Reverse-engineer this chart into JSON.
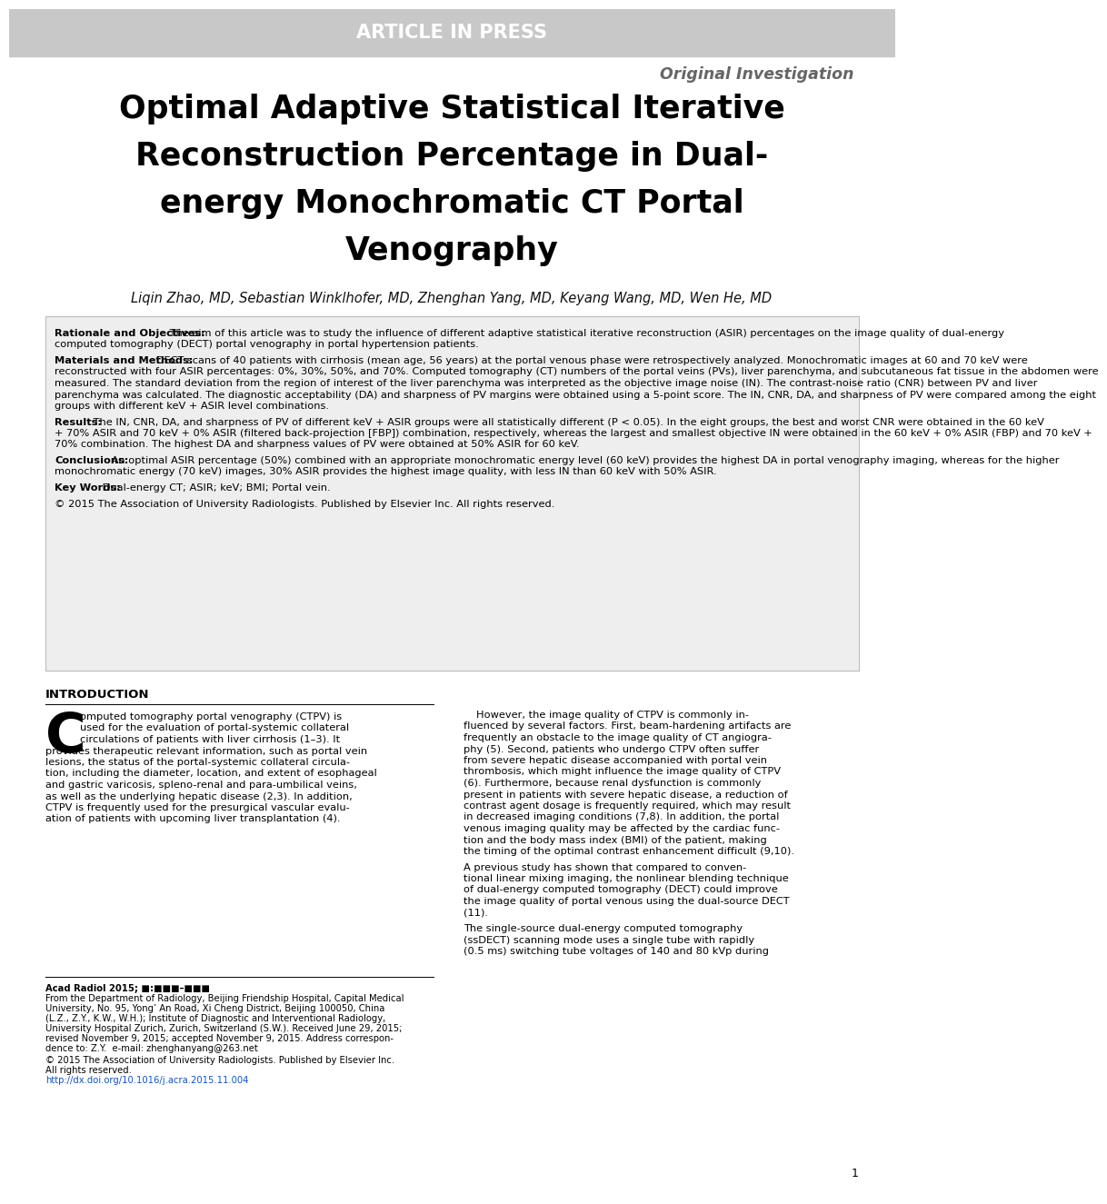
{
  "header_bg_color": "#c8c8c8",
  "header_text": "ARTICLE IN PRESS",
  "subheader_text": "Original Investigation",
  "title_lines": [
    "Optimal Adaptive Statistical Iterative",
    "Reconstruction Percentage in Dual-",
    "energy Monochromatic CT Portal",
    "Venography"
  ],
  "authors": "Liqin Zhao, MD, Sebastian Winklhofer, MD, Zhenghan Yang, MD, Keyang Wang, MD, Wen He, MD",
  "abstract_box_bg": "#eeeeee",
  "abstract_border_color": "#bbbbbb",
  "abstract_sections": [
    {
      "label": "Rationale and Objectives:",
      "text": " The aim of this article was to study the influence of different adaptive statistical iterative reconstruction (ASIR) percentages on the image quality of dual-energy computed tomography (DECT) portal venography in portal hypertension patients."
    },
    {
      "label": "Materials and Methods:",
      "text": " DECT scans of 40 patients with cirrhosis (mean age, 56 years) at the portal venous phase were retrospectively analyzed. Monochromatic images at 60 and 70 keV were reconstructed with four ASIR percentages: 0%, 30%, 50%, and 70%. Computed tomography (CT) numbers of the portal veins (PVs), liver parenchyma, and subcutaneous fat tissue in the abdomen were measured. The standard deviation from the region of interest of the liver parenchyma was interpreted as the objective image noise (IN). The contrast-noise ratio (CNR) between PV and liver parenchyma was calculated. The diagnostic acceptability (DA) and sharpness of PV margins were obtained using a 5-point score. The IN, CNR, DA, and sharpness of PV were compared among the eight groups with different keV + ASIR level combinations."
    },
    {
      "label": "Results:",
      "text": " The IN, CNR, DA, and sharpness of PV of different keV + ASIR groups were all statistically different (P < 0.05). In the eight groups, the best and worst CNR were obtained in the 60 keV + 70% ASIR and 70 keV + 0% ASIR (filtered back-projection [FBP]) combination, respectively, whereas the largest and smallest objective IN were obtained in the 60 keV + 0% ASIR (FBP) and 70 keV + 70% combination. The highest DA and sharpness values of PV were obtained at 50% ASIR for 60 keV."
    },
    {
      "label": "Conclusions:",
      "text": " An optimal ASIR percentage (50%) combined with an appropriate monochromatic energy level (60 keV) provides the highest DA in portal venography imaging, whereas for the higher monochromatic energy (70 keV) images, 30% ASIR provides the highest image quality, with less IN than 60 keV with 50% ASIR."
    },
    {
      "label": "Key Words:",
      "text": " Dual-energy CT; ASIR; keV; BMI; Portal vein."
    },
    {
      "label": "© 2015",
      "text": " The Association of University Radiologists. Published by Elsevier Inc. All rights reserved.",
      "no_bold": true
    }
  ],
  "intro_title": "INTRODUCTION",
  "intro_drop_cap": "C",
  "intro_left_col_after_drop": "omputed tomography portal venography (CTPV) is\nused for the evaluation of portal-systemic collateral\ncirculations of patients with liver cirrhosis (1–3). It\nprovides therapeutic relevant information, such as portal vein\nlesions, the status of the portal-systemic collateral circula-\ntion, including the diameter, location, and extent of esophageal\nand gastric varicosis, spleno-renal and para-umbilical veins,\nas well as the underlying hepatic disease (2,3). In addition,\nCTPV is frequently used for the presurgical vascular evalu-\nation of patients with upcoming liver transplantation (4).",
  "intro_right_col_paras": [
    "However, the image quality of CTPV is commonly in-\nfluenced by several factors. First, beam-hardening artifacts are\nfrequently an obstacle to the image quality of CT angiogra-\nphy (5). Second, patients who undergo CTPV often suffer\nfrom severe hepatic disease accompanied with portal vein\nthrombosis, which might influence the image quality of CTPV\n(6). Furthermore, because renal dysfunction is commonly\npresent in patients with severe hepatic disease, a reduction of\ncontrast agent dosage is frequently required, which may result\nin decreased imaging conditions (7,8). In addition, the portal\nvenous imaging quality may be affected by the cardiac func-\ntion and the body mass index (BMI) of the patient, making\nthe timing of the optimal contrast enhancement difficult (9,10).",
    "A previous study has shown that compared to conven-\ntional linear mixing imaging, the nonlinear blending technique\nof dual-energy computed tomography (DECT) could improve\nthe image quality of portal venous using the dual-source DECT\n(11).",
    "The single-source dual-energy computed tomography\n(ssDECT) scanning mode uses a single tube with rapidly\n(0.5 ms) switching tube voltages of 140 and 80 kVp during"
  ],
  "footer_acad": "Acad Radiol 2015; ■:■■■–■■■",
  "footer_body": "From the Department of Radiology, Beijing Friendship Hospital, Capital Medical\nUniversity, No. 95, Yong’ An Road, Xi Cheng District, Beijing 100050, China\n(L.Z., Z.Y., K.W., W.H.); Institute of Diagnostic and Interventional Radiology,\nUniversity Hospital Zurich, Zurich, Switzerland (S.W.). Received June 29, 2015;\nrevised November 9, 2015; accepted November 9, 2015. Address correspon-\ndence to: Z.Y.  e-mail: zhenghanyang@263.net",
  "footer_copy": "© 2015 The Association of University Radiologists. Published by Elsevier Inc.\nAll rights reserved.",
  "footer_doi": "http://dx.doi.org/10.1016/j.acra.2015.11.004",
  "page_number": "1",
  "bg_color": "#ffffff",
  "text_color": "#000000",
  "link_color": "#1155cc"
}
